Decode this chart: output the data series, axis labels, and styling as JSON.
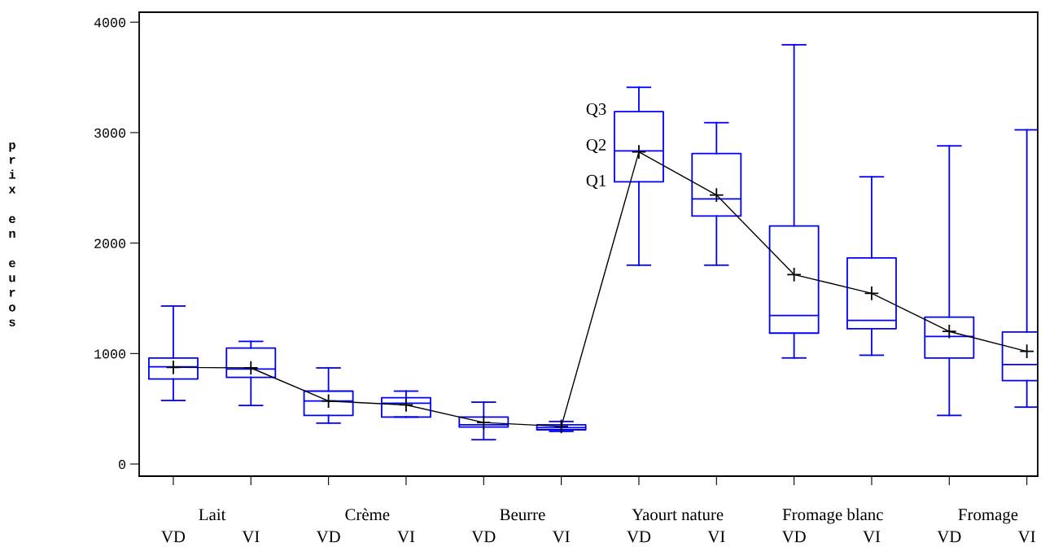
{
  "chart_data": {
    "type": "box",
    "ylabel": "prix en euros",
    "categories": [
      "VD",
      "VI",
      "VD",
      "VI",
      "VD",
      "VI",
      "VD",
      "VI",
      "VD",
      "VI",
      "VD",
      "VI"
    ],
    "color": "#0000ff",
    "boxes": [
      {
        "low": 575,
        "q1": 770,
        "median": 880,
        "q3": 960,
        "high": 1430
      },
      {
        "low": 530,
        "q1": 785,
        "median": 860,
        "q3": 1050,
        "high": 1110
      },
      {
        "low": 370,
        "q1": 440,
        "median": 570,
        "q3": 660,
        "high": 870
      },
      {
        "low": 425,
        "q1": 425,
        "median": 550,
        "q3": 600,
        "high": 660
      },
      {
        "low": 220,
        "q1": 335,
        "median": 355,
        "q3": 425,
        "high": 560
      },
      {
        "low": 295,
        "q1": 310,
        "median": 330,
        "q3": 355,
        "high": 385
      },
      {
        "low": 1800,
        "q1": 2555,
        "median": 2835,
        "q3": 3190,
        "high": 3410
      },
      {
        "low": 1800,
        "q1": 2245,
        "median": 2400,
        "q3": 2810,
        "high": 3090
      },
      {
        "low": 960,
        "q1": 1185,
        "median": 1345,
        "q3": 2155,
        "high": 3795
      },
      {
        "low": 985,
        "q1": 1225,
        "median": 1300,
        "q3": 1865,
        "high": 2600
      },
      {
        "low": 440,
        "q1": 960,
        "median": 1155,
        "q3": 1330,
        "high": 2880
      },
      {
        "low": 515,
        "q1": 755,
        "median": 900,
        "q3": 1195,
        "high": 3025
      }
    ],
    "series": [
      {
        "type": "line",
        "color": "#000000",
        "marker": "cross",
        "line_style": "solid",
        "values": [
          875,
          870,
          570,
          535,
          375,
          340,
          2825,
          2435,
          1715,
          1545,
          1200,
          1020
        ]
      }
    ],
    "ylim": [
      -110,
      4090
    ],
    "yticks": [
      0,
      1000,
      2000,
      3000,
      4000
    ],
    "grid": false,
    "annotations": [
      "Lait",
      "Crème",
      "Beurre",
      "Yaourt nature",
      "Fromage blanc",
      "Fromage",
      "Q3",
      "Q2",
      "Q1"
    ]
  }
}
